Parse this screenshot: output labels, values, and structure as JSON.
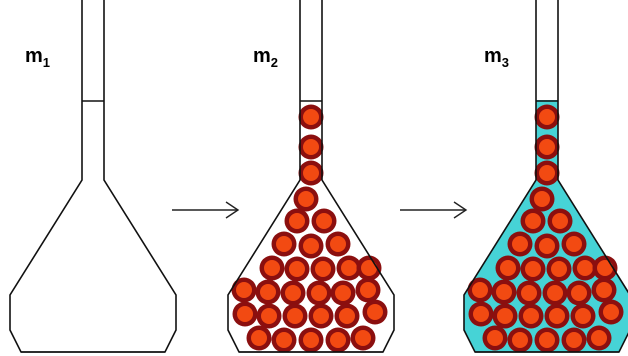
{
  "labels": {
    "m1": {
      "base": "m",
      "sub": "1"
    },
    "m2": {
      "base": "m",
      "sub": "2"
    },
    "m3": {
      "base": "m",
      "sub": "3"
    }
  },
  "colors": {
    "outline": "#111111",
    "bead_outer": "#8b0f0f",
    "bead_inner": "#f24a12",
    "liquid": "#46d3d6",
    "arrow": "#222222"
  },
  "panels": [
    {
      "name": "empty-flask",
      "label_key": "m1",
      "beads": false,
      "liquid": false
    },
    {
      "name": "flask-with-beads",
      "label_key": "m2",
      "beads": true,
      "liquid": false
    },
    {
      "name": "flask-with-beads-and-liquid",
      "label_key": "m3",
      "beads": true,
      "liquid": true
    }
  ],
  "arrows": [
    {
      "name": "arrow-1",
      "icon": "right-arrow-icon"
    },
    {
      "name": "arrow-2",
      "icon": "right-arrow-icon"
    }
  ]
}
